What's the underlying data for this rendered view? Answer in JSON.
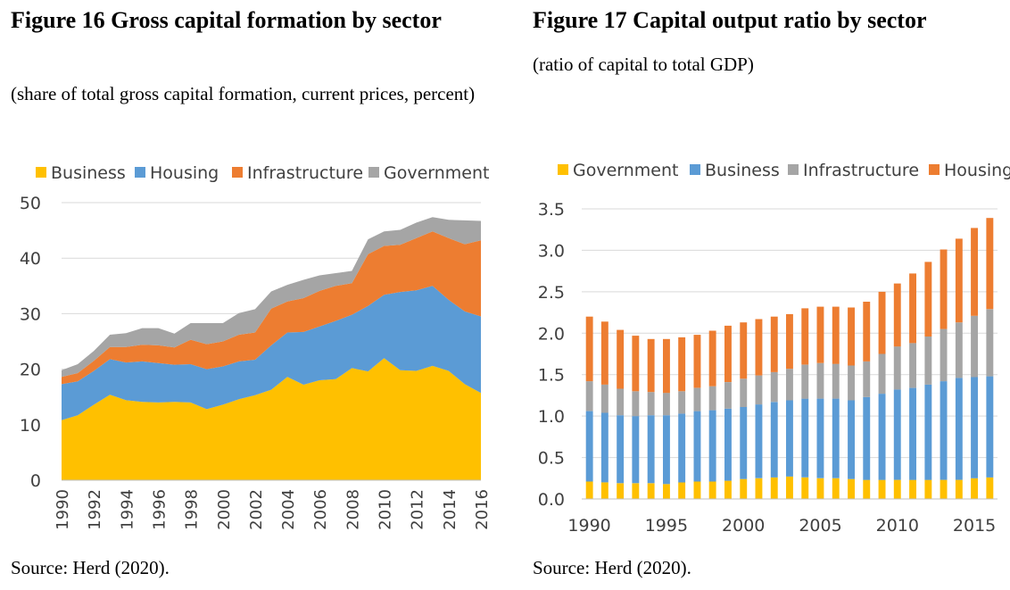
{
  "figure16": {
    "title": "Figure 16 Gross capital formation by sector",
    "subtitle": "(share of total gross capital formation, current prices, percent)",
    "source": "Source: Herd (2020)."
  },
  "figure17": {
    "title": "Figure 17 Capital output ratio by sector",
    "subtitle": "(ratio of capital to total GDP)",
    "source": "Source: Herd (2020)."
  },
  "chart_data": [
    {
      "type": "area",
      "stacked": true,
      "title": "Figure 16 Gross capital formation by sector",
      "subtitle": "(share of total gross capital formation, current prices, percent)",
      "ylim": [
        0,
        50
      ],
      "yticks": [
        "0",
        "10",
        "20",
        "30",
        "40",
        "50"
      ],
      "xtick_labels": [
        "1990",
        "1992",
        "1994",
        "1996",
        "1998",
        "2000",
        "2002",
        "2004",
        "2006",
        "2008",
        "2010",
        "2012",
        "2014",
        "2016"
      ],
      "legend_position": "top",
      "grid": true,
      "x": [
        1990,
        1991,
        1992,
        1993,
        1994,
        1995,
        1996,
        1997,
        1998,
        1999,
        2000,
        2001,
        2002,
        2003,
        2004,
        2005,
        2006,
        2007,
        2008,
        2009,
        2010,
        2011,
        2012,
        2013,
        2014,
        2015,
        2016
      ],
      "series": [
        {
          "name": "Business",
          "color": "#FFC000",
          "values": [
            10.8,
            11.7,
            13.6,
            15.4,
            14.4,
            14.1,
            14.0,
            14.1,
            14.0,
            12.8,
            13.6,
            14.6,
            15.3,
            16.3,
            18.6,
            17.2,
            18.0,
            18.2,
            20.2,
            19.6,
            22.0,
            19.8,
            19.7,
            20.6,
            19.7,
            17.3,
            15.7
          ]
        },
        {
          "name": "Housing",
          "color": "#5B9BD5",
          "values": [
            6.5,
            6.1,
            6.1,
            6.4,
            6.8,
            7.3,
            7.1,
            6.7,
            6.9,
            7.2,
            6.9,
            6.8,
            6.4,
            8.0,
            8.0,
            9.5,
            9.7,
            10.5,
            9.6,
            11.8,
            11.4,
            14.1,
            14.5,
            14.4,
            12.8,
            13.1,
            13.8
          ]
        },
        {
          "name": "Infrastructure",
          "color": "#ED7D31",
          "values": [
            1.3,
            1.5,
            1.8,
            2.2,
            2.8,
            3.0,
            3.2,
            3.1,
            4.4,
            4.5,
            4.5,
            4.8,
            4.9,
            6.6,
            5.6,
            6.1,
            6.4,
            6.3,
            5.7,
            9.3,
            8.8,
            8.5,
            9.4,
            9.8,
            11.1,
            12.1,
            13.7
          ]
        },
        {
          "name": "Government",
          "color": "#A5A5A5",
          "values": [
            1.2,
            1.6,
            1.8,
            2.2,
            2.5,
            3.0,
            3.1,
            2.5,
            3.0,
            3.8,
            3.3,
            3.9,
            4.2,
            3.1,
            3.0,
            3.3,
            2.8,
            2.3,
            2.2,
            2.7,
            2.6,
            2.7,
            2.8,
            2.6,
            3.3,
            4.3,
            3.5
          ]
        }
      ]
    },
    {
      "type": "bar",
      "stacked": true,
      "title": "Figure 17 Capital output ratio by sector",
      "subtitle": "(ratio of capital to total GDP)",
      "ylim": [
        0,
        3.5
      ],
      "yticks": [
        "0.0",
        "0.5",
        "1.0",
        "1.5",
        "2.0",
        "2.5",
        "3.0",
        "3.5"
      ],
      "xtick_labels": [
        "1990",
        "1995",
        "2000",
        "2005",
        "2010",
        "2015"
      ],
      "legend_position": "top",
      "grid": true,
      "categories": [
        1990,
        1991,
        1992,
        1993,
        1994,
        1995,
        1996,
        1997,
        1998,
        1999,
        2000,
        2001,
        2002,
        2003,
        2004,
        2005,
        2006,
        2007,
        2008,
        2009,
        2010,
        2011,
        2012,
        2013,
        2014,
        2015,
        2016
      ],
      "series": [
        {
          "name": "Government",
          "color": "#FFC000",
          "values": [
            0.21,
            0.2,
            0.19,
            0.19,
            0.19,
            0.18,
            0.2,
            0.21,
            0.21,
            0.22,
            0.24,
            0.25,
            0.26,
            0.27,
            0.26,
            0.25,
            0.25,
            0.24,
            0.23,
            0.23,
            0.23,
            0.23,
            0.23,
            0.23,
            0.23,
            0.25,
            0.26
          ]
        },
        {
          "name": "Business",
          "color": "#5B9BD5",
          "values": [
            0.85,
            0.84,
            0.82,
            0.81,
            0.82,
            0.83,
            0.83,
            0.85,
            0.86,
            0.87,
            0.87,
            0.89,
            0.91,
            0.92,
            0.95,
            0.96,
            0.96,
            0.95,
            1.0,
            1.04,
            1.09,
            1.11,
            1.15,
            1.19,
            1.23,
            1.22,
            1.22
          ]
        },
        {
          "name": "Infrastructure",
          "color": "#A5A5A5",
          "values": [
            0.36,
            0.34,
            0.32,
            0.3,
            0.28,
            0.27,
            0.27,
            0.28,
            0.29,
            0.32,
            0.34,
            0.35,
            0.36,
            0.38,
            0.41,
            0.43,
            0.42,
            0.42,
            0.43,
            0.48,
            0.52,
            0.54,
            0.58,
            0.63,
            0.67,
            0.74,
            0.81
          ]
        },
        {
          "name": "Housing",
          "color": "#ED7D31",
          "values": [
            0.78,
            0.76,
            0.71,
            0.67,
            0.64,
            0.65,
            0.65,
            0.64,
            0.67,
            0.68,
            0.68,
            0.68,
            0.67,
            0.66,
            0.68,
            0.68,
            0.69,
            0.7,
            0.72,
            0.75,
            0.76,
            0.84,
            0.9,
            0.96,
            1.01,
            1.06,
            1.1
          ]
        }
      ]
    }
  ]
}
